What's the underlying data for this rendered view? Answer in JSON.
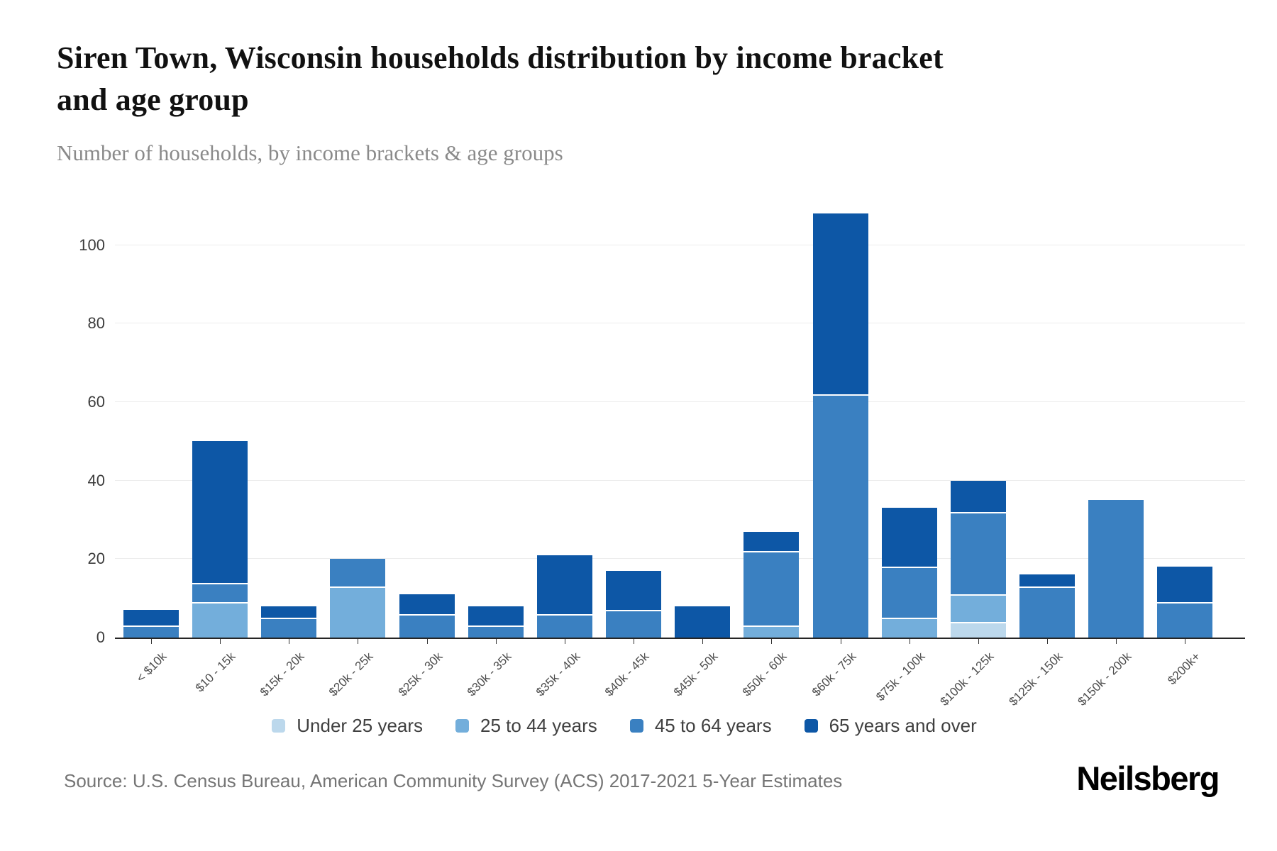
{
  "chart_data": {
    "type": "bar",
    "stacked": true,
    "title": "Siren Town, Wisconsin households distribution by income bracket and age group",
    "title_lines": [
      "Siren Town, Wisconsin households distribution by income bracket",
      "and age group"
    ],
    "subtitle": "Number of households, by income brackets & age groups",
    "categories": [
      "< $10k",
      "$10 - 15k",
      "$15k - 20k",
      "$20k - 25k",
      "$25k - 30k",
      "$30k - 35k",
      "$35k - 40k",
      "$40k - 45k",
      "$45k - 50k",
      "$50k - 60k",
      "$60k - 75k",
      "$75k - 100k",
      "$100k - 125k",
      "$125k - 150k",
      "$150k - 200k",
      "$200k+"
    ],
    "series": [
      {
        "name": "Under 25 years",
        "color": "#bcd8ec",
        "values": [
          0,
          0,
          0,
          0,
          0,
          0,
          0,
          0,
          0,
          0,
          0,
          0,
          4,
          0,
          0,
          0
        ]
      },
      {
        "name": "25 to 44 years",
        "color": "#73aedb",
        "values": [
          0,
          9,
          0,
          13,
          0,
          0,
          0,
          0,
          0,
          3,
          0,
          5,
          7,
          0,
          0,
          0
        ]
      },
      {
        "name": "45 to 64 years",
        "color": "#3a80c1",
        "values": [
          3,
          5,
          5,
          7,
          6,
          3,
          6,
          7,
          0,
          19,
          62,
          13,
          21,
          13,
          35,
          9
        ]
      },
      {
        "name": "65 years and over",
        "color": "#0d57a6",
        "values": [
          4,
          36,
          3,
          0,
          5,
          5,
          15,
          10,
          8,
          5,
          46,
          15,
          8,
          3,
          0,
          9
        ]
      }
    ],
    "totals": [
      7,
      50,
      8,
      20,
      11,
      8,
      21,
      17,
      8,
      27,
      108,
      33,
      40,
      16,
      35,
      18
    ],
    "ylabel": "Number of households",
    "yticks": [
      0,
      20,
      40,
      60,
      80,
      100
    ],
    "ylim": [
      0,
      110
    ],
    "grid": true,
    "legend_position": "bottom"
  },
  "footer": {
    "source": "Source: U.S. Census Bureau, American Community Survey (ACS) 2017-2021 5-Year Estimates",
    "brand": "Neilsberg"
  }
}
